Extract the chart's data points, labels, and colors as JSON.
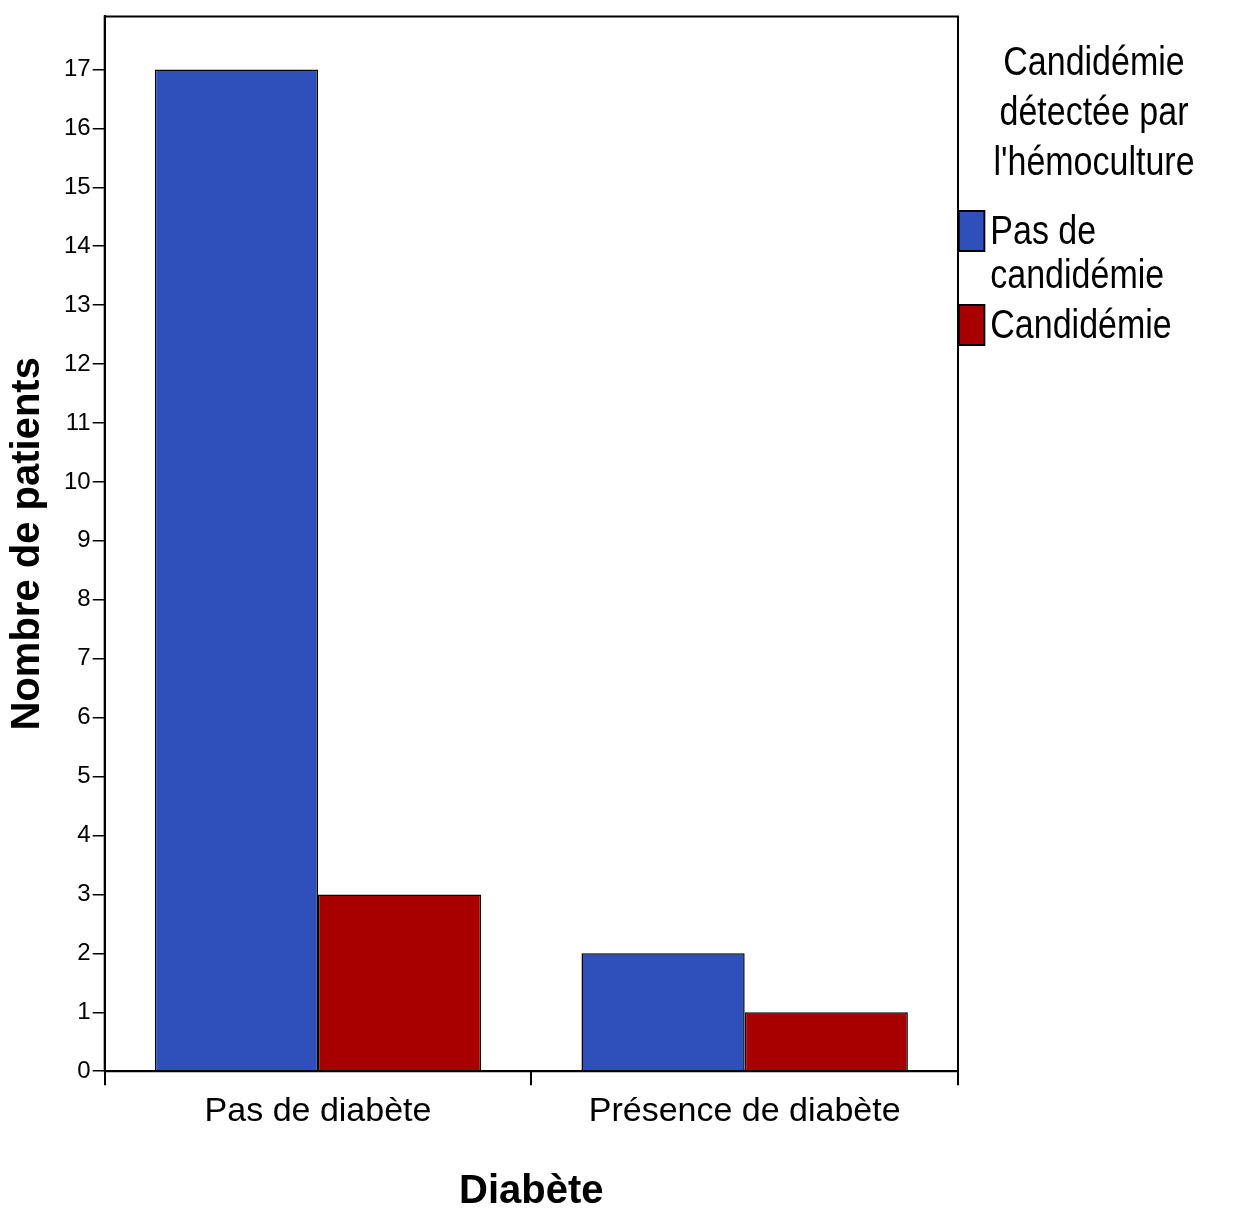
{
  "chart_data": {
    "type": "bar",
    "xlabel": "Diabète",
    "ylabel": "Nombre de patients",
    "legend_title": "Candidémie détectée par l'hémoculture",
    "categories": [
      "Pas de diabète",
      "Présence de diabète"
    ],
    "series": [
      {
        "name": "Pas de candidémie",
        "color": "#2f4fba",
        "values": [
          17,
          2
        ]
      },
      {
        "name": "Candidémie",
        "color": "#a80000",
        "values": [
          3,
          1
        ]
      }
    ],
    "ylim": [
      0,
      17.9
    ],
    "yticks": [
      0,
      1,
      2,
      3,
      4,
      5,
      6,
      7,
      8,
      9,
      10,
      11,
      12,
      13,
      14,
      15,
      16,
      17
    ],
    "grid": false,
    "legend": "right"
  }
}
